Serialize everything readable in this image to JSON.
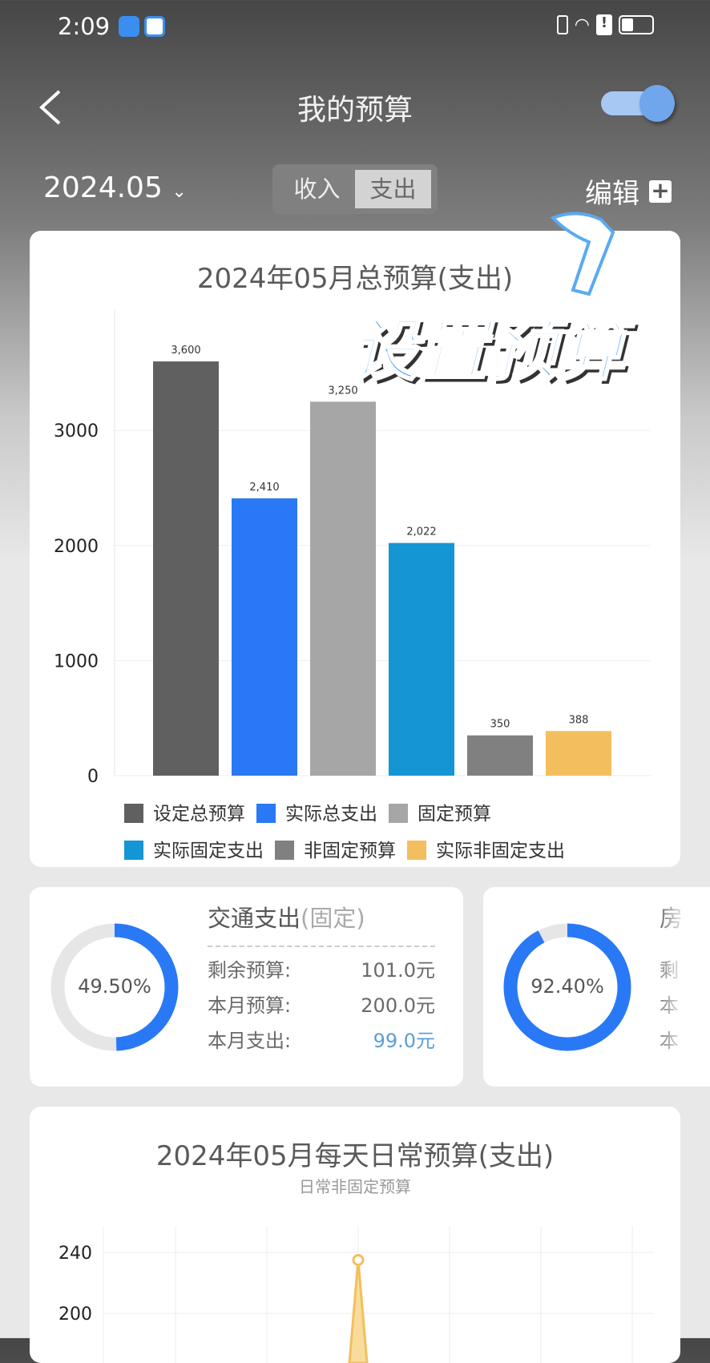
{
  "status_bar": {
    "time": "2:09",
    "icons": [
      "cloud-app-icon",
      "browser-app-icon",
      "vibrate-icon",
      "wifi-icon",
      "alert-icon",
      "battery-icon"
    ]
  },
  "header": {
    "title": "我的预算",
    "back_icon": "chevron-left-icon",
    "toggle_on": true
  },
  "toolbar": {
    "month": "2024.05",
    "tabs": [
      "收入",
      "支出"
    ],
    "active_tab": "支出",
    "edit_label": "编辑"
  },
  "overlay": {
    "text": "设置预算",
    "icon": "hand-pointer-arrow-icon"
  },
  "total_card": {
    "title": "2024年05月总预算(支出)"
  },
  "chart_data": [
    {
      "type": "bar",
      "title": "2024年05月总预算(支出)",
      "categories": [
        "设定总预算",
        "实际总支出",
        "固定预算",
        "实际固定支出",
        "非固定预算",
        "实际非固定支出"
      ],
      "values": [
        3600,
        2410,
        3250,
        2022,
        350,
        388
      ],
      "data_labels": [
        "3,600",
        "2,410",
        "3,250",
        "2,022",
        "350",
        "388"
      ],
      "colors": [
        "#606060",
        "#2979f6",
        "#a6a6a6",
        "#1595d3",
        "#808080",
        "#f3bf5e"
      ],
      "yticks": [
        "0",
        "1000",
        "2000",
        "3000"
      ],
      "ylim": [
        0,
        3800
      ],
      "grid": true,
      "legend": "bottom"
    },
    {
      "type": "area",
      "title": "2024年05月每天日常预算(支出)",
      "subtitle": "日常非固定预算",
      "yticks": [
        "200",
        "240"
      ],
      "peak_value": 235,
      "color": "#f3bf5e",
      "grid": true
    }
  ],
  "categories": [
    {
      "name": "交通支出",
      "tag": "(固定)",
      "percent": "49.50%",
      "fraction": 0.495,
      "rows": [
        {
          "label": "剩余预算:",
          "value": "101.0元"
        },
        {
          "label": "本月预算:",
          "value": "200.0元"
        },
        {
          "label": "本月支出:",
          "value": "99.0元"
        }
      ],
      "spent_color": "#5a9fd6"
    },
    {
      "name": "房",
      "percent": "92.40%",
      "fraction": 0.924,
      "rows": [
        {
          "label": "剩"
        },
        {
          "label": "本"
        },
        {
          "label": "本"
        }
      ]
    }
  ]
}
